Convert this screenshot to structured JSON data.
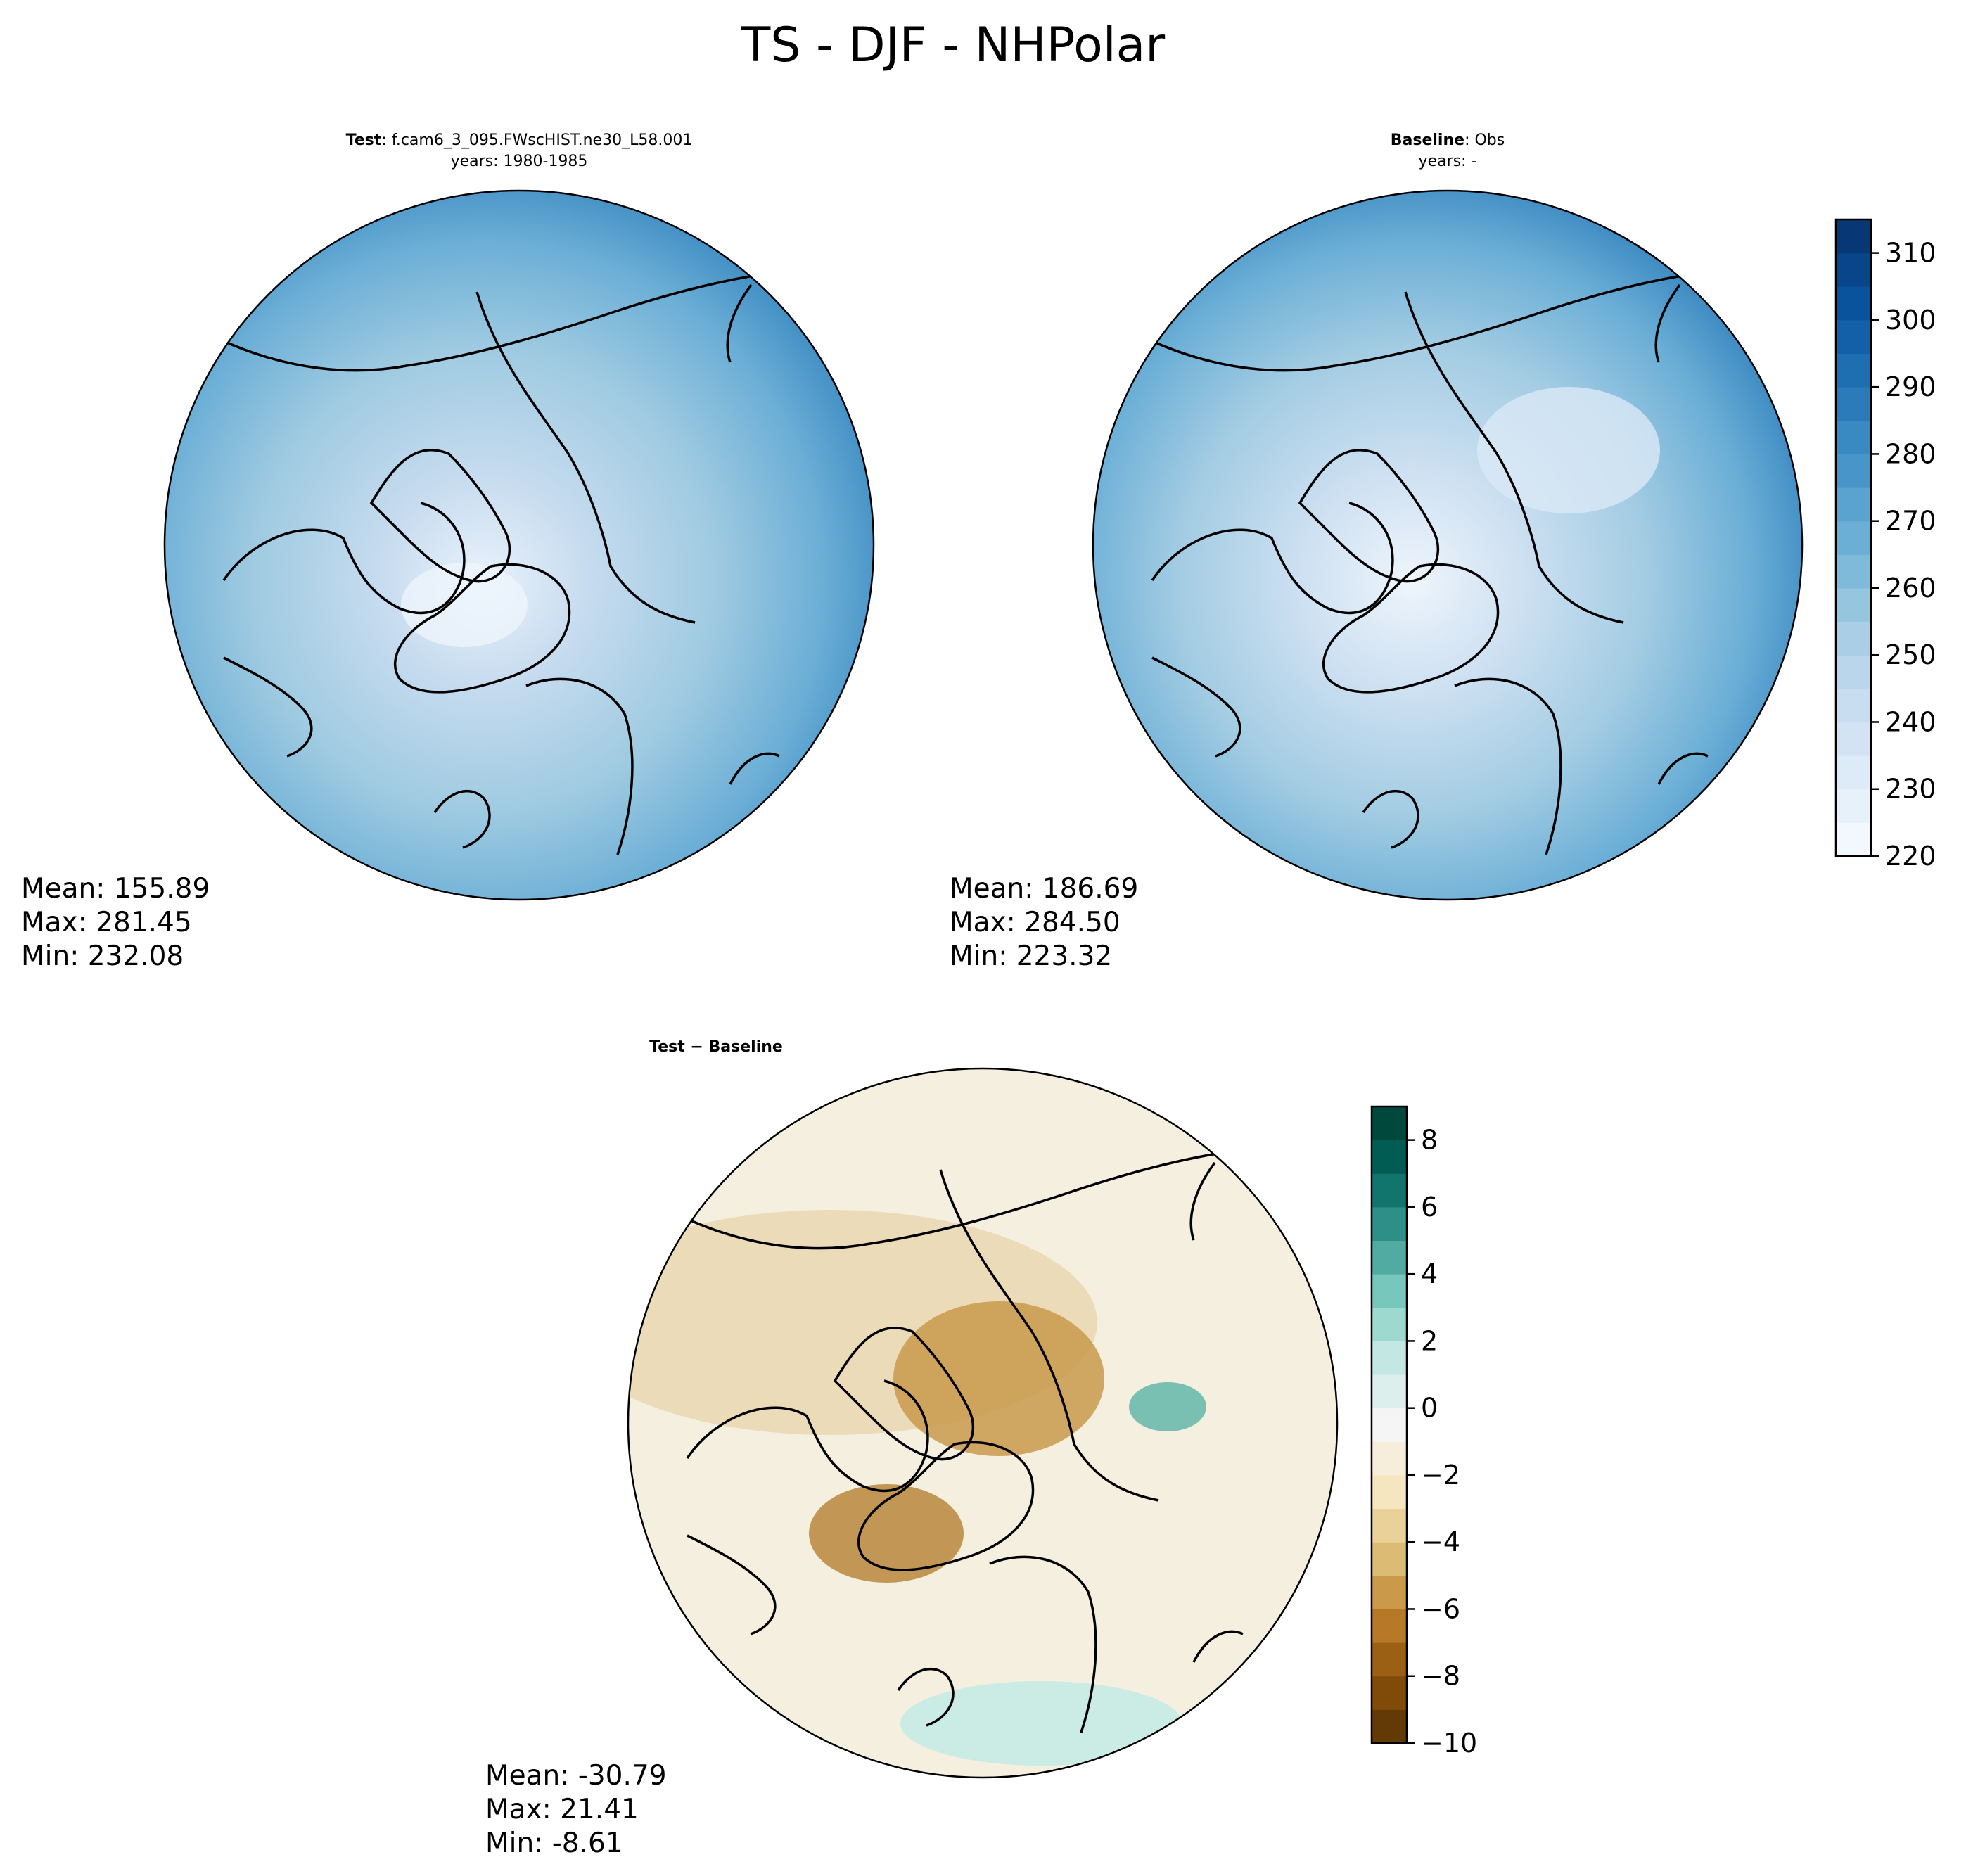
{
  "figure": {
    "title": "TS - DJF - NHPolar"
  },
  "panels": {
    "test": {
      "title_bold": "Test",
      "title_rest": ": f.cam6_3_095.FWscHIST.ne30_L58.001",
      "subtitle": "years: 1980-1985",
      "stats": {
        "mean": "Mean: 155.89",
        "max": "Max: 281.45",
        "min": "Min: 232.08"
      }
    },
    "baseline": {
      "title_bold": "Baseline",
      "title_rest": ": Obs",
      "subtitle": "years: -",
      "stats": {
        "mean": "Mean: 186.69",
        "max": "Max: 284.50",
        "min": "Min: 223.32"
      }
    },
    "diff": {
      "title": "Test − Baseline",
      "stats": {
        "mean": "Mean: -30.79",
        "max": "Max: 21.41",
        "min": "Min: -8.61"
      }
    }
  },
  "colorbars": {
    "absolute": {
      "colormap": "Blues",
      "min": 220,
      "max": 315,
      "step": 5,
      "tick_values": [
        220,
        230,
        240,
        250,
        260,
        270,
        280,
        290,
        300,
        310
      ],
      "tick_labels": [
        "220",
        "230",
        "240",
        "250",
        "260",
        "270",
        "280",
        "290",
        "300",
        "310"
      ]
    },
    "difference": {
      "colormap": "BrBG",
      "min": -10,
      "max": 9,
      "step": 1,
      "tick_values": [
        -10,
        -8,
        -6,
        -4,
        -2,
        0,
        2,
        4,
        6,
        8
      ],
      "tick_labels": [
        "−10",
        "−8",
        "−6",
        "−4",
        "−2",
        "0",
        "2",
        "4",
        "6",
        "8"
      ]
    }
  }
}
